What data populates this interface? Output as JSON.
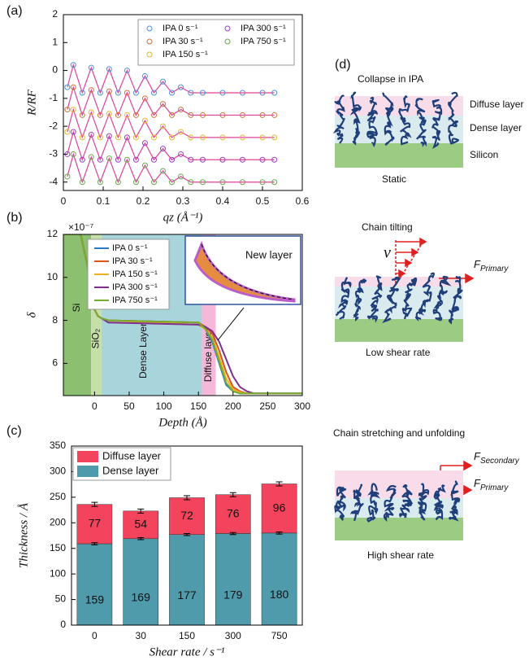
{
  "chart_data": [
    {
      "type": "line",
      "panel_label": "(a)",
      "xlabel": "qz (Å⁻¹)",
      "ylabel": "R/RF",
      "x": [
        0.01,
        0.025,
        0.0475,
        0.07,
        0.0925,
        0.115,
        0.1375,
        0.16,
        0.1825,
        0.205,
        0.2275,
        0.25,
        0.2725,
        0.295,
        0.32,
        0.35,
        0.4,
        0.45,
        0.5,
        0.53
      ],
      "series": [
        {
          "name": "IPA 0 s⁻¹",
          "color": "#4f8fd8",
          "values": [
            -0.6,
            0.2,
            -0.8,
            0.1,
            -0.8,
            0.05,
            -0.8,
            0,
            -0.8,
            -0.2,
            -0.8,
            -0.4,
            -0.8,
            -0.6,
            -0.8,
            -0.8,
            -0.8,
            -0.8,
            -0.8,
            -0.8
          ]
        },
        {
          "name": "IPA 30 s⁻¹",
          "color": "#d0703a",
          "values": [
            -1.4,
            -0.6,
            -1.6,
            -0.7,
            -1.6,
            -0.75,
            -1.6,
            -0.8,
            -1.6,
            -1.0,
            -1.6,
            -1.2,
            -1.6,
            -1.4,
            -1.6,
            -1.6,
            -1.6,
            -1.6,
            -1.6,
            -1.6
          ]
        },
        {
          "name": "IPA 150 s⁻¹",
          "color": "#e8b830",
          "values": [
            -2.2,
            -1.4,
            -2.4,
            -1.5,
            -2.4,
            -1.55,
            -2.4,
            -1.6,
            -2.4,
            -1.8,
            -2.4,
            -2.0,
            -2.4,
            -2.2,
            -2.4,
            -2.4,
            -2.4,
            -2.4,
            -2.4,
            -2.4
          ]
        },
        {
          "name": "IPA 300 s⁻¹",
          "color": "#9b3fbf",
          "values": [
            -3.0,
            -2.2,
            -3.2,
            -2.3,
            -3.2,
            -2.35,
            -3.2,
            -2.4,
            -3.2,
            -2.6,
            -3.2,
            -2.8,
            -3.2,
            -3.0,
            -3.2,
            -3.2,
            -3.2,
            -3.2,
            -3.2,
            -3.2
          ]
        },
        {
          "name": "IPA 750 s⁻¹",
          "color": "#6aa84f",
          "values": [
            -3.8,
            -3.0,
            -4.0,
            -3.1,
            -4.0,
            -3.15,
            -4.0,
            -3.2,
            -4.0,
            -3.4,
            -4.0,
            -3.6,
            -4.0,
            -3.8,
            -4.0,
            -4.0,
            -4.0,
            -4.0,
            -4.0,
            -4.0
          ]
        }
      ],
      "markers": true,
      "fit_color": "#e0409a",
      "xlim": [
        0,
        0.6
      ],
      "xticks": [
        0,
        0.1,
        0.2,
        0.3,
        0.4,
        0.5,
        0.6
      ],
      "ylim": [
        -4.3,
        2
      ],
      "yticks": [
        -4,
        -3,
        -2,
        -1,
        0,
        1,
        2
      ],
      "legend": "upper right"
    },
    {
      "type": "line",
      "panel_label": "(b)",
      "xlabel": "Depth (Å)",
      "ylabel": "δ",
      "y_multiplier": "×10⁻⁷",
      "x": [
        -45,
        -20,
        -10,
        0,
        5,
        10,
        20,
        150,
        160,
        170,
        180,
        190,
        200,
        210,
        220,
        230,
        250,
        300
      ],
      "series": [
        {
          "name": "IPA 0 s⁻¹",
          "color": "#2a7bbf",
          "values": [
            12,
            12,
            10.5,
            8.5,
            8.2,
            8.1,
            8.0,
            7.9,
            7.6,
            7.0,
            6.0,
            5.0,
            4.7,
            4.6,
            4.6,
            4.6,
            4.6,
            4.6
          ]
        },
        {
          "name": "IPA 30 s⁻¹",
          "color": "#d9541a",
          "values": [
            12,
            12,
            10.5,
            8.5,
            8.2,
            8.1,
            8.0,
            7.9,
            7.7,
            7.4,
            6.6,
            5.6,
            4.9,
            4.7,
            4.6,
            4.6,
            4.6,
            4.6
          ]
        },
        {
          "name": "IPA 150 s⁻¹",
          "color": "#edb120",
          "values": [
            12,
            12,
            10.5,
            8.5,
            8.2,
            8.1,
            8.0,
            7.8,
            7.6,
            7.2,
            6.3,
            5.3,
            4.8,
            4.65,
            4.6,
            4.6,
            4.6,
            4.6
          ]
        },
        {
          "name": "IPA 300 s⁻¹",
          "color": "#7e2f8e",
          "values": [
            12,
            12,
            10.5,
            8.5,
            8.2,
            8.1,
            7.9,
            7.8,
            7.7,
            7.5,
            7.0,
            6.2,
            5.4,
            4.9,
            4.7,
            4.6,
            4.6,
            4.6
          ]
        },
        {
          "name": "IPA 750 s⁻¹",
          "color": "#77ac30",
          "values": [
            12,
            12,
            10.5,
            8.5,
            8.2,
            8.1,
            8.0,
            7.9,
            7.6,
            7.1,
            6.1,
            5.1,
            4.7,
            4.6,
            4.6,
            4.6,
            4.6,
            4.6
          ]
        }
      ],
      "regions": [
        {
          "label": "Si",
          "from": -45,
          "to": -5,
          "color": "#8cc070"
        },
        {
          "label": "SiO₂",
          "from": -5,
          "to": 10,
          "color": "#c4dfa8"
        },
        {
          "label": "Dense Layer",
          "from": 10,
          "to": 155,
          "color": "#a8d4dc"
        },
        {
          "label": "Diffuse layer",
          "from": 155,
          "to": 175,
          "color": "#f4b8d8"
        }
      ],
      "inset_annotation": "New layer",
      "xlim": [
        -45,
        300
      ],
      "xticks": [
        0,
        50,
        100,
        150,
        200,
        250,
        300
      ],
      "ylim": [
        4.5,
        12
      ],
      "yticks": [
        6,
        8,
        10,
        12
      ],
      "legend": "upper left"
    },
    {
      "type": "stacked_bar",
      "panel_label": "(c)",
      "xlabel": "Shear rate / s⁻¹",
      "ylabel": "Thickness / Å",
      "categories": [
        "0",
        "30",
        "150",
        "300",
        "750"
      ],
      "series": [
        {
          "name": "Dense layer",
          "color": "#4f9aab",
          "values": [
            159,
            169,
            177,
            179,
            180
          ],
          "errors": [
            2,
            2,
            2,
            2,
            2
          ]
        },
        {
          "name": "Diffuse layer",
          "color": "#f4435c",
          "values": [
            77,
            54,
            72,
            76,
            96
          ],
          "errors": [
            4,
            4,
            4,
            4,
            4
          ]
        }
      ],
      "ylim": [
        0,
        350
      ],
      "yticks": [
        0,
        50,
        100,
        150,
        200,
        250,
        300,
        350
      ],
      "legend": "upper left"
    }
  ],
  "diagram": {
    "panel_label": "(d)",
    "static": {
      "title": "Collapse in IPA",
      "layers": [
        "Diffuse layer",
        "Dense layer",
        "Silicon"
      ],
      "caption": "Static"
    },
    "low": {
      "title": "Chain tilting",
      "velocity": "ν",
      "force": {
        "symbol": "F",
        "subscript": "Primary"
      },
      "caption": "Low shear rate"
    },
    "high": {
      "title": "Chain stretching and unfolding",
      "force2": {
        "symbol": "F",
        "subscript": "Secondary"
      },
      "force": {
        "symbol": "F",
        "subscript": "Primary"
      },
      "caption": "High shear rate"
    }
  }
}
